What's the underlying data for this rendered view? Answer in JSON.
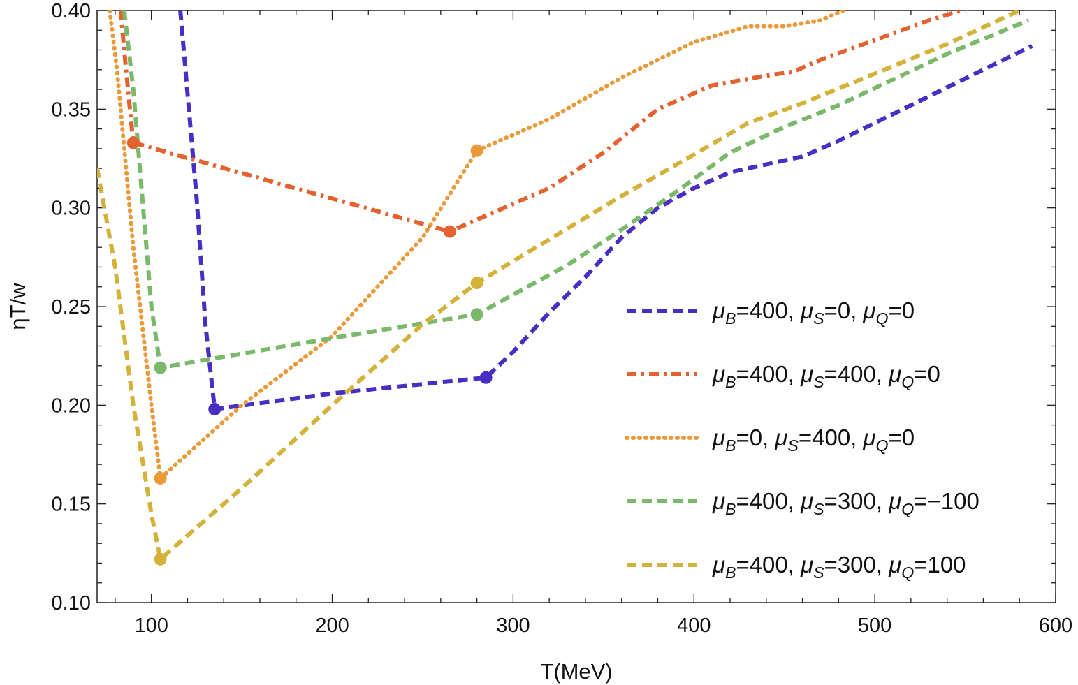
{
  "chart_data": {
    "type": "line",
    "title": "",
    "xlabel": "T(MeV)",
    "ylabel": "ηT/w",
    "xlim": [
      70,
      600
    ],
    "ylim": [
      0.1,
      0.4
    ],
    "x_ticks": [
      100,
      200,
      300,
      400,
      500,
      600
    ],
    "x_tick_labels": [
      "100",
      "200",
      "300",
      "400",
      "500",
      "600"
    ],
    "y_ticks": [
      0.1,
      0.15,
      0.2,
      0.25,
      0.3,
      0.35,
      0.4
    ],
    "y_tick_labels": [
      "0.10",
      "0.15",
      "0.20",
      "0.25",
      "0.30",
      "0.35",
      "0.40"
    ],
    "legend_position": "center-right",
    "series": [
      {
        "name": "μ_B=400, μ_S=0, μ_Q=0",
        "legend": {
          "parts": [
            [
              "μ",
              "B",
              "=400, "
            ],
            [
              "μ",
              "S",
              "=0, "
            ],
            [
              "μ",
              "Q",
              "=0"
            ]
          ]
        },
        "color": "#4a2ec4",
        "dash": "dashed",
        "x": [
          116,
          125,
          130,
          135,
          200,
          285,
          300,
          320,
          340,
          360,
          380,
          400,
          420,
          440,
          460,
          480,
          500,
          520,
          540,
          560,
          587
        ],
        "y": [
          0.4,
          0.305,
          0.24,
          0.198,
          0.206,
          0.214,
          0.227,
          0.247,
          0.265,
          0.285,
          0.3,
          0.31,
          0.318,
          0.322,
          0.326,
          0.334,
          0.343,
          0.352,
          0.361,
          0.37,
          0.382
        ],
        "markers": [
          {
            "x": 135,
            "y": 0.198
          },
          {
            "x": 285,
            "y": 0.214
          }
        ]
      },
      {
        "name": "μ_B=400, μ_S=400, μ_Q=0",
        "legend": {
          "parts": [
            [
              "μ",
              "B",
              "=400, "
            ],
            [
              "μ",
              "S",
              "=400, "
            ],
            [
              "μ",
              "Q",
              "=0"
            ]
          ]
        },
        "color": "#e3622f",
        "dash": "dashdot",
        "x": [
          83,
          86,
          90,
          265,
          290,
          320,
          350,
          380,
          410,
          440,
          455,
          470,
          500,
          530,
          555
        ],
        "y": [
          0.4,
          0.37,
          0.333,
          0.288,
          0.298,
          0.31,
          0.328,
          0.35,
          0.362,
          0.367,
          0.369,
          0.375,
          0.385,
          0.395,
          0.402
        ],
        "markers": [
          {
            "x": 90,
            "y": 0.333
          },
          {
            "x": 265,
            "y": 0.288
          }
        ]
      },
      {
        "name": "μ_B=0, μ_S=400, μ_Q=0",
        "legend": {
          "parts": [
            [
              "μ",
              "B",
              "=0, "
            ],
            [
              "μ",
              "S",
              "=400, "
            ],
            [
              "μ",
              "Q",
              "=0"
            ]
          ]
        },
        "color": "#eb9a3a",
        "dash": "dotted",
        "x": [
          77,
          81,
          90,
          100,
          105,
          150,
          200,
          250,
          280,
          320,
          360,
          400,
          430,
          450,
          470,
          485
        ],
        "y": [
          0.4,
          0.37,
          0.28,
          0.2,
          0.163,
          0.2,
          0.235,
          0.285,
          0.329,
          0.345,
          0.366,
          0.384,
          0.392,
          0.392,
          0.395,
          0.401
        ],
        "markers": [
          {
            "x": 105,
            "y": 0.163
          },
          {
            "x": 280,
            "y": 0.329
          }
        ]
      },
      {
        "name": "μ_B=400, μ_S=300, μ_Q=-100",
        "legend": {
          "parts": [
            [
              "μ",
              "B",
              "=400, "
            ],
            [
              "μ",
              "S",
              "=300, "
            ],
            [
              "μ",
              "Q",
              "=−100"
            ]
          ]
        },
        "color": "#7ab86a",
        "dash": "dashed",
        "x": [
          85,
          90,
          95,
          100,
          105,
          200,
          280,
          300,
          330,
          360,
          390,
          420,
          450,
          480,
          510,
          540,
          585
        ],
        "y": [
          0.4,
          0.36,
          0.305,
          0.25,
          0.219,
          0.234,
          0.246,
          0.256,
          0.271,
          0.289,
          0.308,
          0.328,
          0.341,
          0.352,
          0.365,
          0.378,
          0.395
        ],
        "markers": [
          {
            "x": 105,
            "y": 0.219
          },
          {
            "x": 280,
            "y": 0.246
          }
        ]
      },
      {
        "name": "μ_B=400, μ_S=300, μ_Q=100",
        "legend": {
          "parts": [
            [
              "μ",
              "B",
              "=400, "
            ],
            [
              "μ",
              "S",
              "=300, "
            ],
            [
              "μ",
              "Q",
              "=100"
            ]
          ]
        },
        "color": "#d4b23a",
        "dash": "dashed",
        "x": [
          70,
          80,
          90,
          100,
          105,
          150,
          200,
          250,
          280,
          320,
          360,
          400,
          430,
          460,
          500,
          540,
          580
        ],
        "y": [
          0.32,
          0.27,
          0.2,
          0.145,
          0.122,
          0.158,
          0.2,
          0.241,
          0.262,
          0.284,
          0.306,
          0.327,
          0.343,
          0.353,
          0.368,
          0.383,
          0.4
        ],
        "markers": [
          {
            "x": 105,
            "y": 0.122
          },
          {
            "x": 280,
            "y": 0.262
          }
        ]
      }
    ]
  }
}
